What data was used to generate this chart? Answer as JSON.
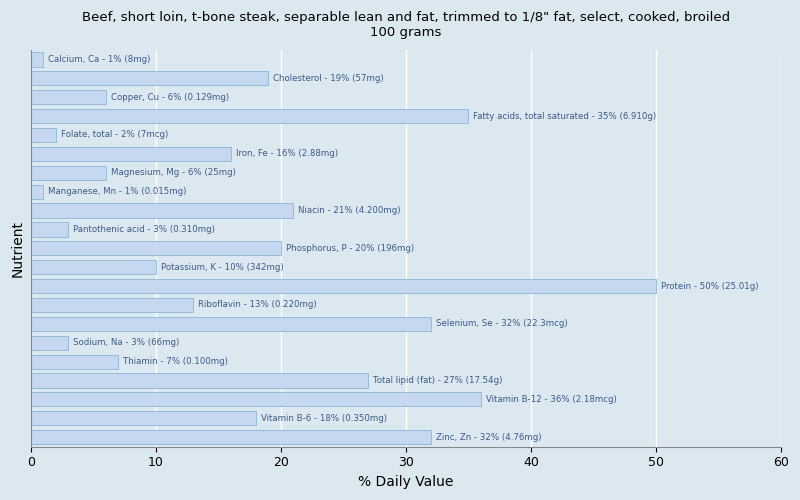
{
  "title": "Beef, short loin, t-bone steak, separable lean and fat, trimmed to 1/8\" fat, select, cooked, broiled\n100 grams",
  "xlabel": "% Daily Value",
  "ylabel": "Nutrient",
  "background_color": "#dce8f0",
  "plot_bg_color": "#dce8f0",
  "bar_color": "#c5d8f0",
  "bar_edge_color": "#7bafd4",
  "bar_text_color": "#3a5a8a",
  "xlim": [
    0,
    60
  ],
  "xticks": [
    0,
    10,
    20,
    30,
    40,
    50,
    60
  ],
  "nutrients": [
    {
      "label": "Calcium, Ca - 1% (8mg)",
      "value": 1
    },
    {
      "label": "Cholesterol - 19% (57mg)",
      "value": 19
    },
    {
      "label": "Copper, Cu - 6% (0.129mg)",
      "value": 6
    },
    {
      "label": "Fatty acids, total saturated - 35% (6.910g)",
      "value": 35
    },
    {
      "label": "Folate, total - 2% (7mcg)",
      "value": 2
    },
    {
      "label": "Iron, Fe - 16% (2.88mg)",
      "value": 16
    },
    {
      "label": "Magnesium, Mg - 6% (25mg)",
      "value": 6
    },
    {
      "label": "Manganese, Mn - 1% (0.015mg)",
      "value": 1
    },
    {
      "label": "Niacin - 21% (4.200mg)",
      "value": 21
    },
    {
      "label": "Pantothenic acid - 3% (0.310mg)",
      "value": 3
    },
    {
      "label": "Phosphorus, P - 20% (196mg)",
      "value": 20
    },
    {
      "label": "Potassium, K - 10% (342mg)",
      "value": 10
    },
    {
      "label": "Protein - 50% (25.01g)",
      "value": 50
    },
    {
      "label": "Riboflavin - 13% (0.220mg)",
      "value": 13
    },
    {
      "label": "Selenium, Se - 32% (22.3mcg)",
      "value": 32
    },
    {
      "label": "Sodium, Na - 3% (66mg)",
      "value": 3
    },
    {
      "label": "Thiamin - 7% (0.100mg)",
      "value": 7
    },
    {
      "label": "Total lipid (fat) - 27% (17.54g)",
      "value": 27
    },
    {
      "label": "Vitamin B-12 - 36% (2.18mcg)",
      "value": 36
    },
    {
      "label": "Vitamin B-6 - 18% (0.350mg)",
      "value": 18
    },
    {
      "label": "Zinc, Zn - 32% (4.76mg)",
      "value": 32
    }
  ]
}
